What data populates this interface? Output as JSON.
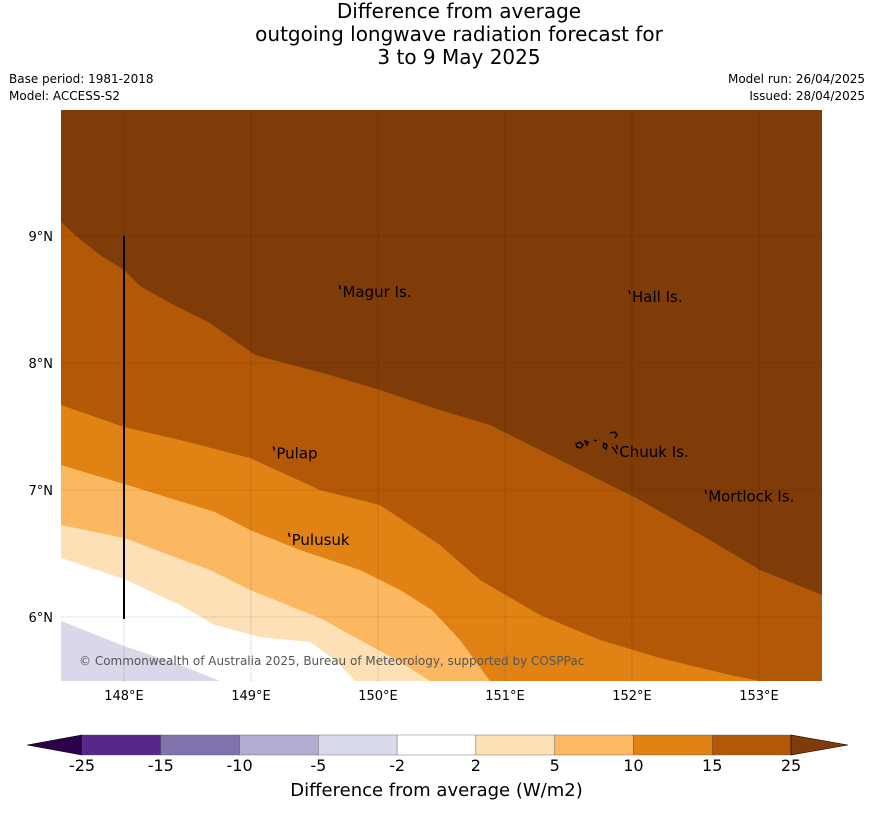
{
  "title_lines": [
    "Difference from average",
    "outgoing longwave radiation forecast for",
    "3 to 9 May 2025"
  ],
  "meta": {
    "base_period": "Base period: 1981-2018",
    "model": "Model: ACCESS-S2",
    "model_run": "Model run: 26/04/2025",
    "issued": "Issued: 28/04/2025"
  },
  "map": {
    "lon_range": [
      147.5,
      153.5
    ],
    "lat_range": [
      5.5,
      10.0
    ],
    "lon_ticks": [
      148,
      149,
      150,
      151,
      152,
      153
    ],
    "lon_tick_labels": [
      "148°E",
      "149°E",
      "150°E",
      "151°E",
      "152°E",
      "153°E"
    ],
    "lat_ticks": [
      6,
      7,
      8,
      9
    ],
    "lat_tick_labels": [
      "6°N",
      "7°N",
      "8°N",
      "9°N"
    ],
    "grid": true,
    "places": [
      {
        "name": "Magur Is.",
        "lon": 149.72,
        "lat": 8.55
      },
      {
        "name": "Hall Is.",
        "lon": 152.0,
        "lat": 8.51
      },
      {
        "name": "Pulap",
        "lon": 149.2,
        "lat": 7.28
      },
      {
        "name": "Chuuk Is.",
        "lon": 151.9,
        "lat": 7.29
      },
      {
        "name": "Mortlock Is.",
        "lon": 152.6,
        "lat": 6.94
      },
      {
        "name": "Pulusuk",
        "lon": 149.32,
        "lat": 6.6
      }
    ],
    "copyright": "© Commonwealth of Australia 2025, Bureau of Meteorology, supported by COSPPac",
    "fill_bands": [
      {
        "range": "-10 to -5",
        "color": "#d8d8ea"
      },
      {
        "range": "-2 to 2",
        "color": "#ffffff"
      },
      {
        "range": "2 to 5",
        "color": "#fde0b6"
      },
      {
        "range": "5 to 10",
        "color": "#fbb861"
      },
      {
        "range": "10 to 15",
        "color": "#e08214"
      },
      {
        "range": "15 to 25",
        "color": "#b35806"
      },
      {
        "range": "> 25",
        "color": "#7f3b08"
      }
    ]
  },
  "colorbar": {
    "label": "Difference from average (W/m2)",
    "tick_labels": [
      "-25",
      "-15",
      "-10",
      "-5",
      "-2",
      "2",
      "5",
      "10",
      "15",
      "25"
    ],
    "colors": [
      "#2d004b",
      "#542788",
      "#8073ac",
      "#b2abd2",
      "#d8daeb",
      "#ffffff",
      "#fee0b6",
      "#fdb863",
      "#e08214",
      "#b35806",
      "#7f3b08"
    ]
  }
}
